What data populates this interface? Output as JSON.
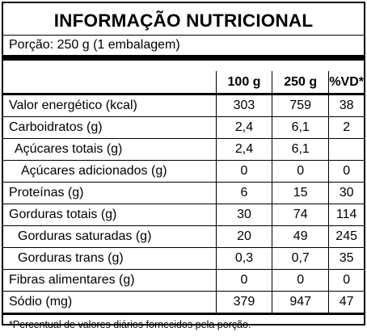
{
  "title": "INFORMAÇÃO NUTRICIONAL",
  "portion": "Porção: 250 g (1 embalagem)",
  "columns": [
    "100 g",
    "250 g",
    "%VD*"
  ],
  "rows": [
    {
      "label": "Valor energético (kcal)",
      "v100": "303",
      "v250": "759",
      "vd": "38"
    },
    {
      "label": "Carboidratos (g)",
      "v100": "2,4",
      "v250": "6,1",
      "vd": "2"
    },
    {
      "label": "Açúcares totais (g)",
      "v100": "2,4",
      "v250": "6,1",
      "vd": ""
    },
    {
      "label": "Açúcares adicionados (g)",
      "v100": "0",
      "v250": "0",
      "vd": "0"
    },
    {
      "label": "Proteínas (g)",
      "v100": "6",
      "v250": "15",
      "vd": "30"
    },
    {
      "label": "Gorduras totais (g)",
      "v100": "30",
      "v250": "74",
      "vd": "114"
    },
    {
      "label": "Gorduras saturadas (g)",
      "v100": "20",
      "v250": "49",
      "vd": "245"
    },
    {
      "label": "Gorduras trans (g)",
      "v100": "0,3",
      "v250": "0,7",
      "vd": "35"
    },
    {
      "label": "Fibras alimentares (g)",
      "v100": "0",
      "v250": "0",
      "vd": "0"
    },
    {
      "label": "Sódio (mg)",
      "v100": "379",
      "v250": "947",
      "vd": "47"
    }
  ],
  "footnote": "*Percentual de valores diários fornecidos pela porção."
}
